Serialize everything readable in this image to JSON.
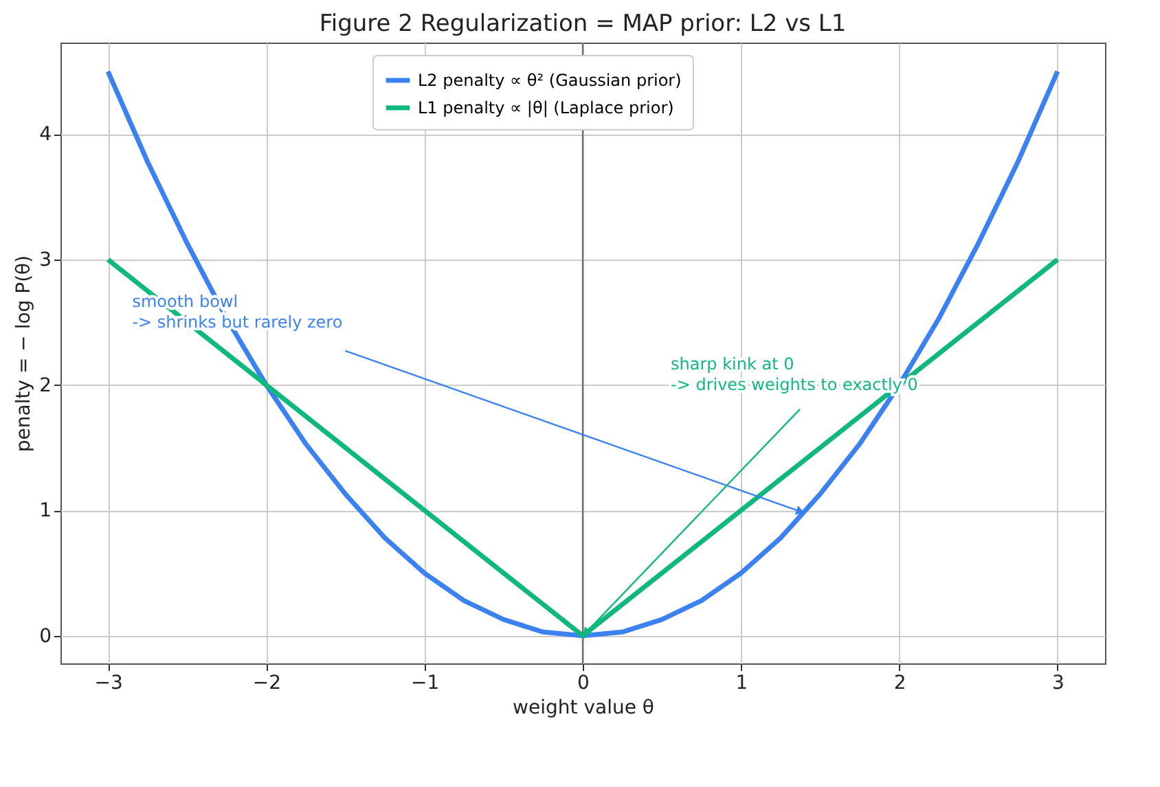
{
  "chart_data": {
    "type": "line",
    "title": "Figure 2  Regularization = MAP prior: L2 vs L1",
    "xlabel": "weight value  θ",
    "ylabel": "penalty  = − log P(θ)",
    "series": [
      {
        "name": "L2 penalty ∝ θ² (Gaussian prior)",
        "color": "#3b82f0",
        "x": [
          -3,
          -2.75,
          -2.5,
          -2.25,
          -2,
          -1.75,
          -1.5,
          -1.25,
          -1,
          -0.75,
          -0.5,
          -0.25,
          0,
          0.25,
          0.5,
          0.75,
          1,
          1.25,
          1.5,
          1.75,
          2,
          2.25,
          2.5,
          2.75,
          3
        ],
        "values": [
          4.5,
          3.78,
          3.13,
          2.53,
          2,
          1.53,
          1.13,
          0.78,
          0.5,
          0.28,
          0.13,
          0.03,
          0,
          0.03,
          0.13,
          0.28,
          0.5,
          0.78,
          1.13,
          1.53,
          2,
          2.53,
          3.13,
          3.78,
          4.5
        ]
      },
      {
        "name": "L1 penalty ∝ |θ| (Laplace prior)",
        "color": "#10b77f",
        "x": [
          -3,
          0,
          3
        ],
        "values": [
          3,
          0,
          3
        ]
      }
    ],
    "xlim": [
      -3.3,
      3.3
    ],
    "ylim": [
      -0.22,
      4.73
    ],
    "xticks": [
      -3,
      -2,
      -1,
      0,
      1,
      2,
      3
    ],
    "yticks": [
      0,
      1,
      2,
      3,
      4
    ],
    "ref_lines": [
      {
        "axis": "x",
        "value": 0,
        "color": "#707070"
      }
    ],
    "annotations": [
      {
        "text": "smooth bowl\n-> shrinks but rarely zero",
        "x": 1.4,
        "y": 0.98
      },
      {
        "text": "sharp kink at 0\n-> drives weights to exactly 0",
        "x": 0,
        "y": 0
      }
    ],
    "grid": true,
    "legend": "top",
    "marker": "none",
    "line_style": "solid"
  }
}
